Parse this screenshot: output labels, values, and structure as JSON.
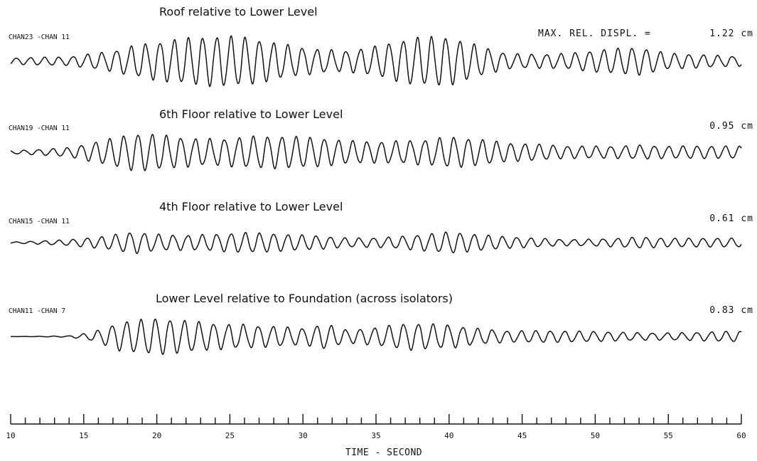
{
  "chart_data": {
    "type": "line",
    "xlabel": "TIME - SECOND",
    "xlim": [
      10,
      60
    ],
    "xticks": [
      10,
      15,
      20,
      25,
      30,
      35,
      40,
      45,
      50,
      55,
      60
    ],
    "xtick_labels": [
      "10",
      "15",
      "20",
      "25",
      "30",
      "35",
      "40",
      "45",
      "50",
      "55",
      "60"
    ],
    "max_label": "MAX. REL. DISPL. =",
    "units": "cm",
    "series": [
      {
        "title": "Roof relative to Lower Level",
        "channel": "CHAN23 -CHAN 11",
        "max_displ": "1.22 cm",
        "max_value": 1.22
      },
      {
        "title": "6th Floor relative to Lower Level",
        "channel": "CHAN19 -CHAN 11",
        "max_displ": "0.95 cm",
        "max_value": 0.95
      },
      {
        "title": "4th Floor relative to Lower Level",
        "channel": "CHAN15 -CHAN 11",
        "max_displ": "0.61 cm",
        "max_value": 0.61
      },
      {
        "title": "Lower Level relative to Foundation (across isolators)",
        "channel": "CHAN11 -CHAN 7",
        "max_displ": "0.83 cm",
        "max_value": 0.83
      }
    ]
  }
}
